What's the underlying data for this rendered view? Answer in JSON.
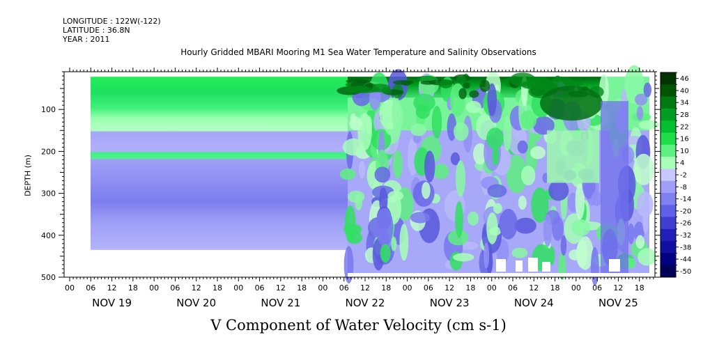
{
  "header": {
    "longitude": "LONGITUDE : 122W(-122)",
    "latitude": "LATITUDE : 36.8N",
    "year": "YEAR : 2011"
  },
  "chart_data": {
    "type": "heatmap",
    "title": "Hourly Gridded MBARI Mooring M1 Sea Water Temperature and Salinity Observations",
    "xlabel": "V Component of Water Velocity (cm s-1)",
    "ylabel": "DEPTH (m)",
    "y_axis": {
      "range": [
        500,
        10
      ],
      "reversed": true,
      "ticks": [
        100,
        200,
        300,
        400,
        500
      ]
    },
    "x_axis": {
      "hour_ticks": [
        "00",
        "06",
        "12",
        "18",
        "00",
        "06",
        "12",
        "18",
        "00",
        "06",
        "12",
        "18",
        "00",
        "06",
        "12",
        "18",
        "00",
        "06",
        "12",
        "18",
        "00",
        "06",
        "12",
        "18",
        "00",
        "06",
        "12",
        "18"
      ],
      "day_labels": [
        "NOV 19",
        "NOV 20",
        "NOV 21",
        "NOV 22",
        "NOV 23",
        "NOV 24",
        "NOV 25"
      ]
    },
    "colorbar": {
      "labels": [
        "46",
        "40",
        "34",
        "28",
        "22",
        "16",
        "10",
        "4",
        "-2",
        "-8",
        "-14",
        "-20",
        "-26",
        "-32",
        "-38",
        "-44",
        "-50"
      ],
      "colors": [
        "#003300",
        "#005500",
        "#007a10",
        "#009e20",
        "#00c030",
        "#20dc48",
        "#5ef080",
        "#a8ffb8",
        "#c8c8ff",
        "#a0a0f8",
        "#8080f0",
        "#6060e8",
        "#4040d0",
        "#2020b8",
        "#1010a0",
        "#000080",
        "#000058"
      ]
    },
    "layers": [
      {
        "depth_range": [
          20,
          150
        ],
        "v_approx": 14
      },
      {
        "depth_range": [
          150,
          205
        ],
        "v_approx": -8
      },
      {
        "depth_range": [
          205,
          222
        ],
        "v_approx": 12
      },
      {
        "depth_range": [
          222,
          435
        ],
        "v_approx": -12
      }
    ]
  }
}
